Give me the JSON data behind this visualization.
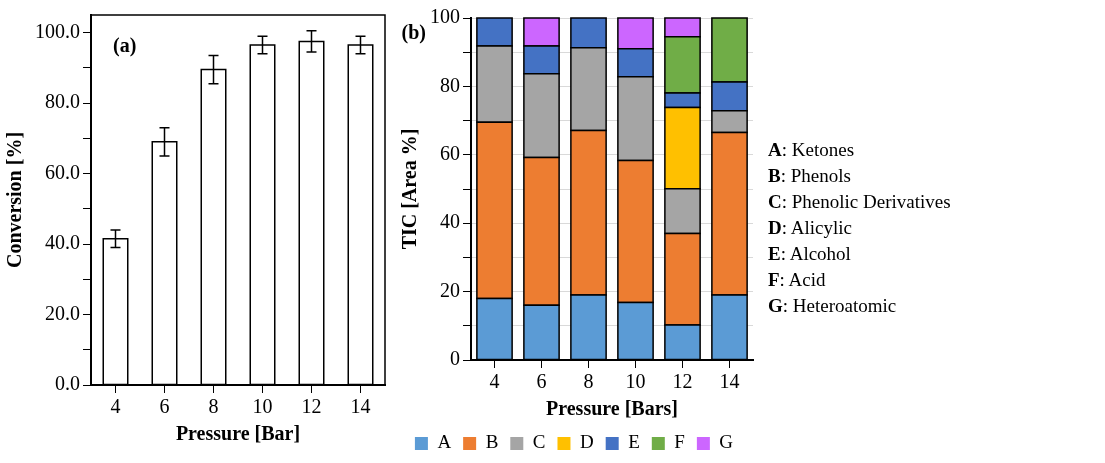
{
  "chart_data": [
    {
      "type": "bar",
      "xlabel": "Pressure [Bar]",
      "ylabel": "Conversion [%]",
      "annotations": [
        "(a)"
      ],
      "categories": [
        "4",
        "6",
        "8",
        "10",
        "12",
        "14"
      ],
      "values": [
        41.5,
        69,
        89.5,
        96.5,
        97.5,
        96.5
      ],
      "errors": [
        2.5,
        4,
        4,
        2.5,
        3,
        2.5
      ],
      "color": "#ffffff",
      "ylim": [
        0,
        105
      ],
      "yticks": [
        {
          "value": 0,
          "label": "0.0"
        },
        {
          "value": 10,
          "label": null
        },
        {
          "value": 20,
          "label": "20.0"
        },
        {
          "value": 30,
          "label": null
        },
        {
          "value": 40,
          "label": "40.0"
        },
        {
          "value": 50,
          "label": null
        },
        {
          "value": 60,
          "label": "60.0"
        },
        {
          "value": 70,
          "label": null
        },
        {
          "value": 80,
          "label": "80.0"
        },
        {
          "value": 90,
          "label": null
        },
        {
          "value": 100,
          "label": "100.0"
        }
      ],
      "grid": false,
      "legend": false
    },
    {
      "type": "bar",
      "stacked": true,
      "xlabel": "Pressure [Bars]",
      "ylabel": "TIC [Area %]",
      "annotations": [
        "(b)",
        "A: Ketones",
        "B: Phenols",
        "C: Phenolic Derivatives",
        "D: Alicylic",
        "E: Alcohol",
        "F: Acid",
        "G: Heteroatomic"
      ],
      "categories": [
        "4",
        "6",
        "8",
        "10",
        "12",
        "14"
      ],
      "series": [
        {
          "name": "A",
          "color": "#5b9bd5",
          "values": [
            18,
            16,
            19,
            16.8,
            10.2,
            19
          ]
        },
        {
          "name": "B",
          "color": "#ed7d31",
          "values": [
            51.5,
            43.2,
            48.1,
            41.5,
            26.8,
            47.5
          ]
        },
        {
          "name": "C",
          "color": "#a5a5a5",
          "values": [
            22.3,
            24.5,
            24.2,
            24.5,
            13.1,
            6.4
          ]
        },
        {
          "name": "D",
          "color": "#ffc000",
          "values": [
            null,
            null,
            null,
            null,
            23.7,
            null
          ]
        },
        {
          "name": "E",
          "color": "#4472c4",
          "values": [
            8.2,
            8.1,
            8.7,
            8.2,
            4.3,
            8.4
          ]
        },
        {
          "name": "F",
          "color": "#70ad47",
          "values": [
            null,
            null,
            null,
            null,
            16.4,
            18.7
          ]
        },
        {
          "name": "G",
          "color": "#cc66ff",
          "values": [
            null,
            8.2,
            null,
            9,
            5.5,
            null
          ]
        }
      ],
      "ylim": [
        0,
        100
      ],
      "yticks": [
        0,
        {
          "value": 10,
          "label": null
        },
        20,
        {
          "value": 30,
          "label": null
        },
        40,
        {
          "value": 50,
          "label": null
        },
        60,
        {
          "value": 70,
          "label": null
        },
        80,
        {
          "value": 90,
          "label": null
        },
        100
      ],
      "grid": "y",
      "legend": "bottom"
    }
  ]
}
